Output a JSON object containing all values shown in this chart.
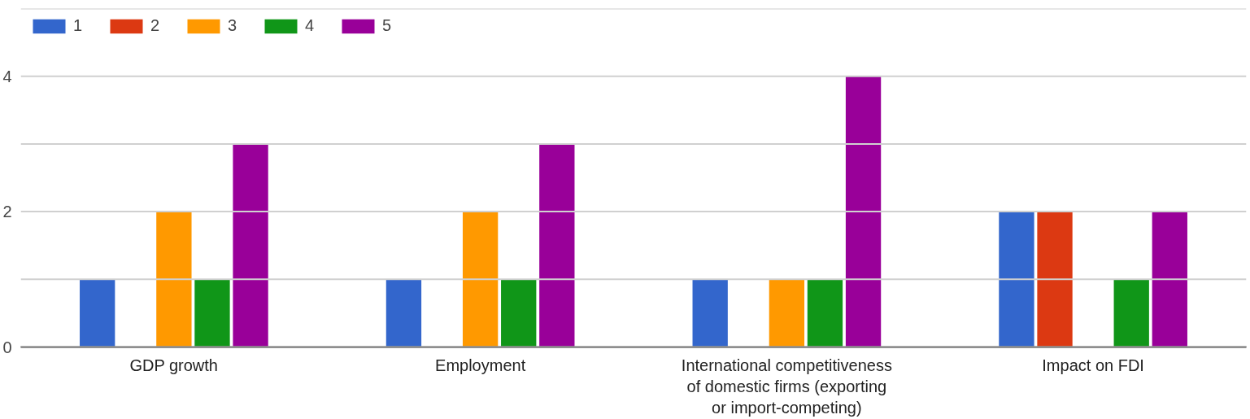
{
  "chart_data": {
    "type": "bar",
    "categories": [
      "GDP growth",
      "Employment",
      "International competitiveness of domestic firms (exporting or import-competing)",
      "Impact on FDI"
    ],
    "series": [
      {
        "name": "1",
        "color": "#3366cc",
        "values": [
          1,
          1,
          1,
          2
        ]
      },
      {
        "name": "2",
        "color": "#dc3912",
        "values": [
          0,
          0,
          0,
          2
        ]
      },
      {
        "name": "3",
        "color": "#ff9900",
        "values": [
          2,
          2,
          1,
          0
        ]
      },
      {
        "name": "4",
        "color": "#109618",
        "values": [
          1,
          1,
          1,
          1
        ]
      },
      {
        "name": "5",
        "color": "#990099",
        "values": [
          3,
          3,
          4,
          2
        ]
      }
    ],
    "ylim": [
      0,
      5
    ],
    "yticks": [
      0,
      {
        "value": 1,
        "label": null
      },
      2,
      {
        "value": 3,
        "label": null
      },
      4,
      {
        "value": 5,
        "label": null
      }
    ],
    "grid": "y",
    "legend": "top left"
  }
}
